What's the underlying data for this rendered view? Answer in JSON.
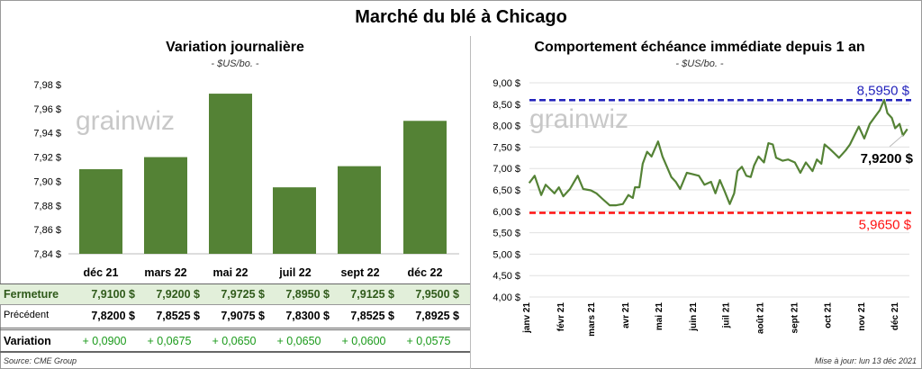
{
  "title": "Marché du blé à Chicago",
  "left": {
    "subtitle": "Variation journalière",
    "unit": "- $US/bo. -",
    "watermark": "grainwiz"
  },
  "right": {
    "subtitle": "Comportement  échéance immédiate depuis 1 an",
    "unit": "- $US/bo. -",
    "watermark": "grainwiz"
  },
  "table": {
    "columns": [
      "déc 21",
      "mars 22",
      "mai 22",
      "juil 22",
      "sept 22",
      "déc 22"
    ],
    "rows": [
      {
        "label": "Fermeture",
        "values": [
          "7,9100  $",
          "7,9200  $",
          "7,9725  $",
          "7,8950  $",
          "7,9125  $",
          "7,9500  $"
        ]
      },
      {
        "label": "Précédent",
        "values": [
          "7,8200  $",
          "7,8525  $",
          "7,9075  $",
          "7,8300  $",
          "7,8525  $",
          "7,8925  $"
        ]
      },
      {
        "label": "Variation",
        "values": [
          "+ 0,0900",
          "+ 0,0675",
          "+ 0,0650",
          "+ 0,0650",
          "+ 0,0600",
          "+ 0,0575"
        ]
      }
    ]
  },
  "source": "Source: CME Group",
  "updated": "Mise à jour: lun 13 déc 2021",
  "colors": {
    "bar": "#548235",
    "line": "#548235",
    "max": "#2222bb",
    "min": "#ff1111",
    "fermeture_bg": "#e2efda",
    "variation": "#1a9a1a"
  },
  "chart_data": [
    {
      "type": "bar",
      "title": "Variation journalière",
      "ylabel": "$US/bo.",
      "categories": [
        "déc 21",
        "mars 22",
        "mai 22",
        "juil 22",
        "sept 22",
        "déc 22"
      ],
      "values": [
        7.91,
        7.92,
        7.9725,
        7.895,
        7.9125,
        7.95
      ],
      "ylim": [
        7.84,
        7.98
      ],
      "yticks": [
        "7,84 $",
        "7,86 $",
        "7,88 $",
        "7,90 $",
        "7,92 $",
        "7,94 $",
        "7,96 $",
        "7,98 $"
      ],
      "grid": false
    },
    {
      "type": "line",
      "title": "Comportement  échéance immédiate depuis 1 an",
      "ylabel": "$US/bo.",
      "ylim": [
        4.0,
        9.0
      ],
      "yticks": [
        "4,00 $",
        "4,50 $",
        "5,00 $",
        "5,50 $",
        "6,00 $",
        "6,50 $",
        "7,00 $",
        "7,50 $",
        "8,00 $",
        "8,50 $",
        "9,00 $"
      ],
      "xticks": [
        "janv 21",
        "févr 21",
        "mars 21",
        "avr 21",
        "mai 21",
        "juin 21",
        "juil 21",
        "août 21",
        "sept 21",
        "oct 21",
        "nov 21",
        "déc 21"
      ],
      "grid": true,
      "max": {
        "value": 8.595,
        "label": "8,5950 $"
      },
      "min": {
        "value": 5.965,
        "label": "5,9650 $"
      },
      "last": {
        "value": 7.92,
        "label": "7,9200 $"
      },
      "x": [
        "2021-01-04",
        "2021-01-09",
        "2021-01-15",
        "2021-01-19",
        "2021-01-23",
        "2021-01-27",
        "2021-01-31",
        "2021-02-04",
        "2021-02-10",
        "2021-02-17",
        "2021-02-22",
        "2021-03-01",
        "2021-03-06",
        "2021-03-12",
        "2021-03-18",
        "2021-03-24",
        "2021-03-30",
        "2021-04-04",
        "2021-04-08",
        "2021-04-10",
        "2021-04-14",
        "2021-04-17",
        "2021-04-21",
        "2021-04-25",
        "2021-05-01",
        "2021-05-05",
        "2021-05-09",
        "2021-05-13",
        "2021-05-17",
        "2021-05-21",
        "2021-05-27",
        "2021-06-01",
        "2021-06-07",
        "2021-06-12",
        "2021-06-18",
        "2021-06-22",
        "2021-06-26",
        "2021-06-30",
        "2021-07-05",
        "2021-07-09",
        "2021-07-12",
        "2021-07-16",
        "2021-07-20",
        "2021-07-24",
        "2021-07-27",
        "2021-07-31",
        "2021-08-05",
        "2021-08-09",
        "2021-08-13",
        "2021-08-16",
        "2021-08-22",
        "2021-08-27",
        "2021-09-02",
        "2021-09-07",
        "2021-09-12",
        "2021-09-18",
        "2021-09-22",
        "2021-09-26",
        "2021-09-29",
        "2021-10-04",
        "2021-10-08",
        "2021-10-12",
        "2021-10-18",
        "2021-10-22",
        "2021-10-26",
        "2021-10-30",
        "2021-11-04",
        "2021-11-09",
        "2021-11-14",
        "2021-11-18",
        "2021-11-22",
        "2021-11-25",
        "2021-11-29",
        "2021-12-02",
        "2021-12-06",
        "2021-12-09",
        "2021-12-13"
      ],
      "y": [
        6.66,
        6.83,
        6.38,
        6.62,
        6.52,
        6.42,
        6.56,
        6.35,
        6.52,
        6.83,
        6.52,
        6.49,
        6.42,
        6.28,
        6.14,
        6.14,
        6.17,
        6.38,
        6.31,
        6.56,
        6.56,
        7.11,
        7.39,
        7.28,
        7.63,
        7.28,
        7.04,
        6.8,
        6.69,
        6.52,
        6.9,
        6.87,
        6.83,
        6.62,
        6.69,
        6.42,
        6.73,
        6.49,
        6.17,
        6.42,
        6.94,
        7.04,
        6.83,
        6.8,
        7.07,
        7.28,
        7.14,
        7.59,
        7.56,
        7.25,
        7.18,
        7.21,
        7.14,
        6.9,
        7.14,
        6.94,
        7.21,
        7.11,
        7.56,
        7.45,
        7.35,
        7.25,
        7.42,
        7.56,
        7.77,
        7.98,
        7.7,
        8.04,
        8.22,
        8.36,
        8.6,
        8.29,
        8.18,
        7.94,
        8.04,
        7.77,
        7.92
      ]
    }
  ]
}
